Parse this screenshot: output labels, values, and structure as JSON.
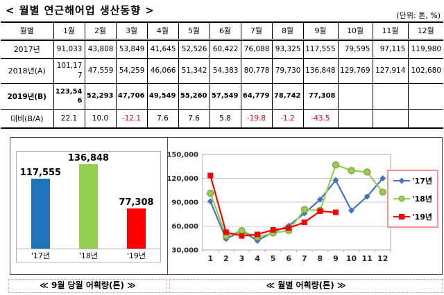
{
  "page": {
    "title": "< 월별 연근해어업 생산동향 >",
    "unit_note": "(단위: 톤, %)"
  },
  "table": {
    "header": [
      "월별",
      "1월",
      "2월",
      "3월",
      "4월",
      "5월",
      "6월",
      "7월",
      "8월",
      "9월",
      "10월",
      "11월",
      "12월"
    ],
    "rows": [
      {
        "label": "2017년",
        "highlight": false,
        "ratio": false,
        "values": [
          "91,033",
          "43,808",
          "53,849",
          "41,645",
          "52,526",
          "60,422",
          "76,088",
          "93,325",
          "117,555",
          "79,595",
          "97,115",
          "119,980"
        ]
      },
      {
        "label": "2018년(A)",
        "highlight": false,
        "ratio": false,
        "values": [
          "101,177",
          "47,559",
          "54,259",
          "46,066",
          "51,342",
          "54,383",
          "80,778",
          "79,730",
          "136,848",
          "129,769",
          "127,914",
          "102,680"
        ]
      },
      {
        "label": "2019년(B)",
        "highlight": true,
        "ratio": false,
        "values": [
          "123,546",
          "52,293",
          "47,706",
          "49,549",
          "55,260",
          "57,549",
          "64,779",
          "78,742",
          "77,308",
          "",
          "",
          ""
        ]
      },
      {
        "label": "대비(B/A)",
        "highlight": false,
        "ratio": true,
        "values": [
          "22.1",
          "10.0",
          "-12.1",
          "7.6",
          "7.6",
          "5.8",
          "-19.8",
          "-1.2",
          "-43.5",
          "",
          "",
          ""
        ]
      }
    ]
  },
  "chart_data": [
    {
      "type": "bar",
      "title": "9월 당월 어획량(톤)",
      "categories": [
        "'17년",
        "'18년",
        "'19년"
      ],
      "values": [
        117555,
        136848,
        77308
      ],
      "labels": [
        "117,555",
        "136,848",
        "77,308"
      ],
      "colors": [
        "#1F74BC",
        "#92D050",
        "#FF0000"
      ],
      "ylim": [
        23000,
        140000
      ],
      "grid": false
    },
    {
      "type": "line",
      "title": "월별 어획량(톤)",
      "x": [
        1,
        2,
        3,
        4,
        5,
        6,
        7,
        8,
        9,
        10,
        11,
        12
      ],
      "series": [
        {
          "name": "'17년",
          "color": "#4472C4",
          "marker": "diamond",
          "values": [
            91033,
            43808,
            53849,
            41645,
            52526,
            60422,
            76088,
            93325,
            117555,
            79595,
            97115,
            119980
          ]
        },
        {
          "name": "'18년",
          "color": "#92D050",
          "marker": "circle",
          "values": [
            101177,
            47559,
            54259,
            46066,
            51342,
            54383,
            80778,
            79730,
            136848,
            129769,
            127914,
            102680
          ]
        },
        {
          "name": "'19년",
          "color": "#FF0000",
          "marker": "square",
          "values": [
            123546,
            52293,
            47706,
            49549,
            55260,
            57549,
            64779,
            78742,
            77308
          ]
        }
      ],
      "ylim": [
        30000,
        150000
      ],
      "yticks": [
        "30,000",
        "60,000",
        "90,000",
        "120,000",
        "150,000"
      ],
      "grid": true,
      "legend_position": "right"
    }
  ],
  "captions": {
    "left": "≪ 9월 당월 어획량(톤) ≫",
    "right": "≪ 월별 어획량(톤) ≫"
  },
  "colors": {
    "negative_text": "#FF0000",
    "legend_border": "#FF9191",
    "caption_border": "#FF9999",
    "grid_line": "#C8C8C8",
    "frame_line": "#ACACAC"
  }
}
